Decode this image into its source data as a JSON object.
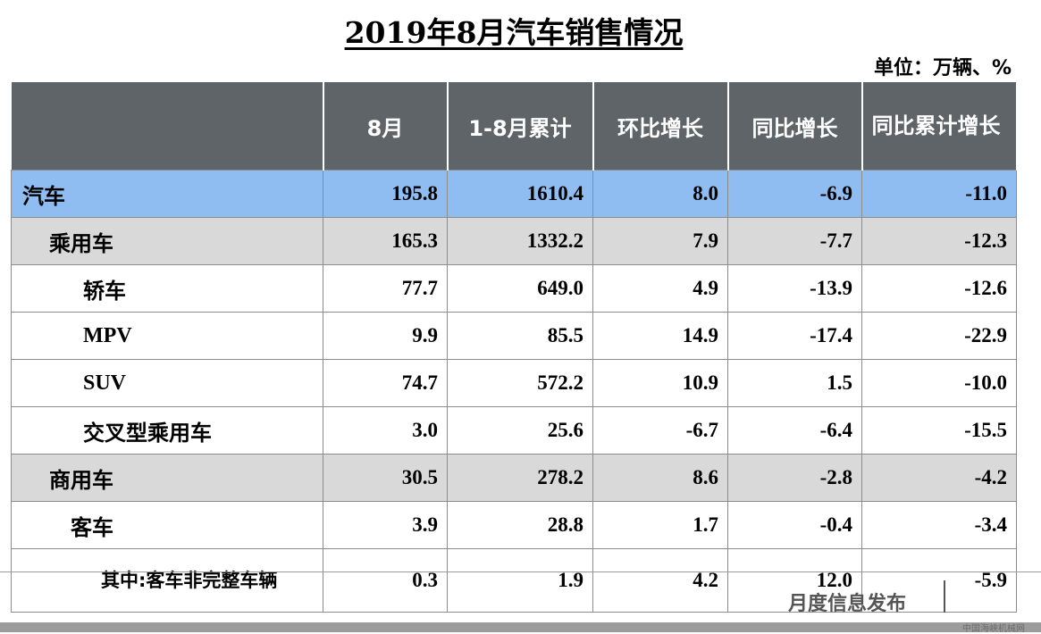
{
  "title": "2019年8月汽车销售情况",
  "unit": "单位：万辆、%",
  "table": {
    "headers": [
      "",
      "8月",
      "1-8月累计",
      "环比增长",
      "同比增长",
      "同比累计增长"
    ],
    "rows": [
      {
        "label": "汽车",
        "values": [
          "195.8",
          "1610.4",
          "8.0",
          "-6.9",
          "-11.0"
        ]
      },
      {
        "label": "乘用车",
        "values": [
          "165.3",
          "1332.2",
          "7.9",
          "-7.7",
          "-12.3"
        ]
      },
      {
        "label": "轿车",
        "values": [
          "77.7",
          "649.0",
          "4.9",
          "-13.9",
          "-12.6"
        ]
      },
      {
        "label": "MPV",
        "values": [
          "9.9",
          "85.5",
          "14.9",
          "-17.4",
          "-22.9"
        ]
      },
      {
        "label": "SUV",
        "values": [
          "74.7",
          "572.2",
          "10.9",
          "1.5",
          "-10.0"
        ]
      },
      {
        "label": "交叉型乘用车",
        "values": [
          "3.0",
          "25.6",
          "-6.7",
          "-6.4",
          "-15.5"
        ]
      },
      {
        "label": "商用车",
        "values": [
          "30.5",
          "278.2",
          "8.6",
          "-2.8",
          "-4.2"
        ]
      },
      {
        "label": "客车",
        "values": [
          "3.9",
          "28.8",
          "1.7",
          "-0.4",
          "-3.4"
        ]
      },
      {
        "label": "其中:客车非完整车辆",
        "values": [
          "0.3",
          "1.9",
          "4.2",
          "12.0",
          "-5.9"
        ]
      }
    ]
  },
  "footer": {
    "text": "月度信息发布",
    "watermark": "中国海峡机械网"
  },
  "colors": {
    "header_bg": "#5f6469",
    "total_row_bg": "#8fbcf1",
    "category_row_bg": "#d9d9d9"
  }
}
